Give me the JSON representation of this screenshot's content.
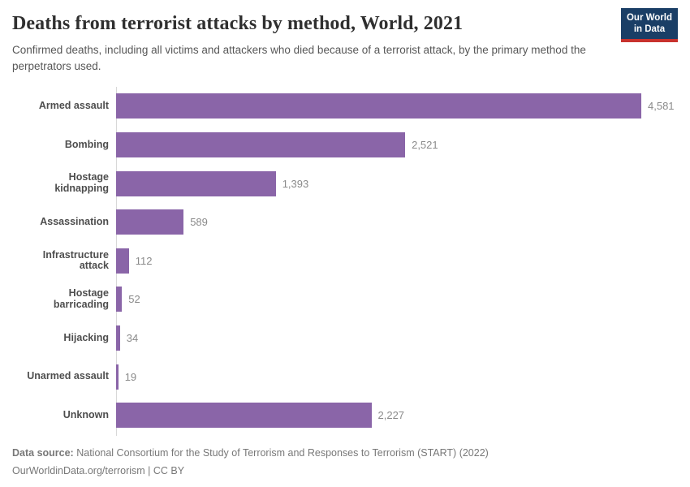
{
  "header": {
    "title": "Deaths from terrorist attacks by method, World, 2021",
    "subtitle": "Confirmed deaths, including all victims and attackers who died because of a terrorist attack, by the primary method the perpetrators used.",
    "logo_line1": "Our World",
    "logo_line2": "in Data",
    "logo_bg_color": "#1a3e66",
    "logo_accent_color": "#c8322d"
  },
  "chart_data": {
    "type": "bar",
    "orientation": "horizontal",
    "title": "Deaths from terrorist attacks by method, World, 2021",
    "xlabel": "",
    "ylabel": "",
    "categories": [
      "Armed assault",
      "Bombing",
      "Hostage kidnapping",
      "Assassination",
      "Infrastructure attack",
      "Hostage barricading",
      "Hijacking",
      "Unarmed assault",
      "Unknown"
    ],
    "values": [
      4581,
      2521,
      1393,
      589,
      112,
      52,
      34,
      19,
      2227
    ],
    "value_labels": [
      "4,581",
      "2,521",
      "1,393",
      "589",
      "112",
      "52",
      "34",
      "19",
      "2,227"
    ],
    "xlim": [
      0,
      4581
    ],
    "bar_color": "#8a65a8",
    "grid": false,
    "legend": false
  },
  "footer": {
    "data_source_label": "Data source:",
    "data_source_text": "National Consortium for the Study of Terrorism and Responses to Terrorism (START) (2022)",
    "attribution": "OurWorldinData.org/terrorism | CC BY"
  }
}
